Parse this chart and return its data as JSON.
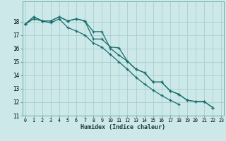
{
  "title": "",
  "xlabel": "Humidex (Indice chaleur)",
  "bg_color": "#cce8e8",
  "grid_color": "#b0d4d4",
  "line_color": "#1a6e6e",
  "x_values": [
    0,
    1,
    2,
    3,
    4,
    5,
    6,
    7,
    8,
    9,
    10,
    11,
    12,
    13,
    14,
    15,
    16,
    17,
    18,
    19,
    20,
    21,
    22,
    23
  ],
  "line1_y": [
    17.8,
    18.35,
    18.05,
    18.05,
    18.35,
    18.05,
    18.2,
    18.05,
    16.7,
    16.7,
    16.1,
    16.05,
    15.05,
    14.45,
    14.2,
    13.5,
    13.5,
    12.85,
    12.6,
    12.15,
    12.05,
    12.05,
    11.6,
    null
  ],
  "line2_y": [
    17.8,
    18.35,
    18.05,
    18.05,
    18.35,
    18.05,
    18.2,
    18.05,
    17.25,
    17.25,
    16.0,
    15.5,
    15.05,
    14.45,
    14.2,
    13.5,
    13.5,
    12.85,
    12.6,
    12.15,
    12.05,
    12.05,
    11.6,
    null
  ],
  "line3_y": [
    17.8,
    18.2,
    18.05,
    17.9,
    18.2,
    17.55,
    17.3,
    17.0,
    16.4,
    16.1,
    15.55,
    15.0,
    14.45,
    13.85,
    13.35,
    12.9,
    12.5,
    12.15,
    11.85,
    null,
    null,
    null,
    null,
    null
  ],
  "ylim": [
    11,
    19
  ],
  "xlim": [
    -0.3,
    23.3
  ],
  "yticks": [
    11,
    12,
    13,
    14,
    15,
    16,
    17,
    18
  ],
  "xticks": [
    0,
    1,
    2,
    3,
    4,
    5,
    6,
    7,
    8,
    9,
    10,
    11,
    12,
    13,
    14,
    15,
    16,
    17,
    18,
    19,
    20,
    21,
    22,
    23
  ]
}
